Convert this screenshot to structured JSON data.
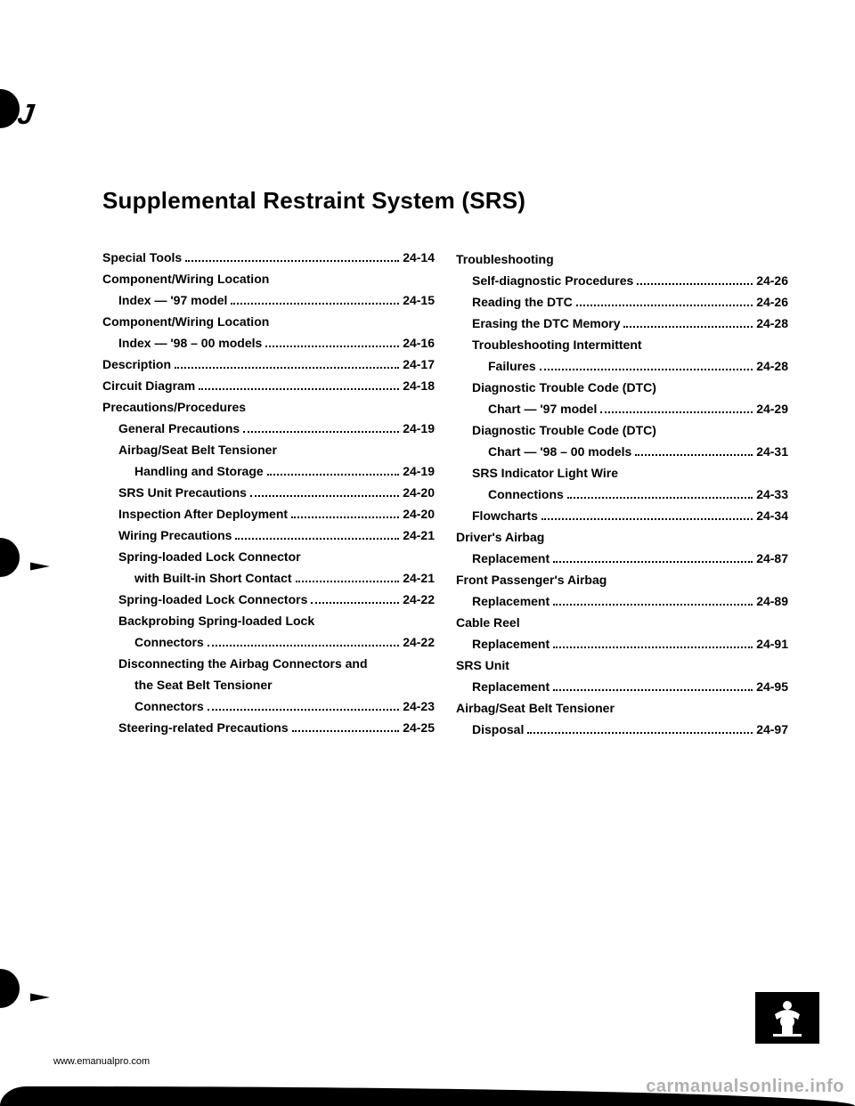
{
  "title": "Supplemental Restraint System (SRS)",
  "footer_url": "www.emanualpro.com",
  "watermark": "carmanualsonline.info",
  "left_col": [
    {
      "type": "line",
      "indent": 0,
      "label": "Special Tools",
      "page": "24-14"
    },
    {
      "type": "heading",
      "indent": 0,
      "label": "Component/Wiring Location"
    },
    {
      "type": "line",
      "indent": 1,
      "label": "Index — '97 model",
      "page": "24-15"
    },
    {
      "type": "heading",
      "indent": 0,
      "label": "Component/Wiring Location"
    },
    {
      "type": "line",
      "indent": 1,
      "label": "Index — '98 – 00 models",
      "page": "24-16"
    },
    {
      "type": "line",
      "indent": 0,
      "label": "Description",
      "page": "24-17"
    },
    {
      "type": "line",
      "indent": 0,
      "label": "Circuit Diagram",
      "page": "24-18"
    },
    {
      "type": "heading",
      "indent": 0,
      "label": "Precautions/Procedures"
    },
    {
      "type": "line",
      "indent": 1,
      "label": "General Precautions",
      "page": "24-19"
    },
    {
      "type": "heading",
      "indent": 1,
      "label": "Airbag/Seat Belt Tensioner"
    },
    {
      "type": "line",
      "indent": 2,
      "label": "Handling and Storage",
      "page": "24-19"
    },
    {
      "type": "line",
      "indent": 1,
      "label": "SRS Unit Precautions",
      "page": "24-20"
    },
    {
      "type": "line",
      "indent": 1,
      "label": "Inspection After Deployment",
      "page": "24-20"
    },
    {
      "type": "line",
      "indent": 1,
      "label": "Wiring Precautions",
      "page": "24-21"
    },
    {
      "type": "heading",
      "indent": 1,
      "label": "Spring-loaded Lock Connector"
    },
    {
      "type": "line",
      "indent": 2,
      "label": "with Built-in Short Contact",
      "page": "24-21"
    },
    {
      "type": "line",
      "indent": 1,
      "label": "Spring-loaded Lock Connectors",
      "page": "24-22"
    },
    {
      "type": "heading",
      "indent": 1,
      "label": "Backprobing Spring-loaded Lock"
    },
    {
      "type": "line",
      "indent": 2,
      "label": "Connectors",
      "page": "24-22"
    },
    {
      "type": "heading",
      "indent": 1,
      "label": "Disconnecting the Airbag Connectors and"
    },
    {
      "type": "heading",
      "indent": 2,
      "label": "the Seat Belt Tensioner"
    },
    {
      "type": "line",
      "indent": 2,
      "label": "Connectors",
      "page": "24-23"
    },
    {
      "type": "line",
      "indent": 1,
      "label": "Steering-related Precautions",
      "page": "24-25"
    }
  ],
  "right_col": [
    {
      "type": "heading",
      "indent": 0,
      "label": "Troubleshooting"
    },
    {
      "type": "line",
      "indent": 1,
      "label": "Self-diagnostic Procedures",
      "page": "24-26"
    },
    {
      "type": "line",
      "indent": 1,
      "label": "Reading the DTC",
      "page": "24-26"
    },
    {
      "type": "line",
      "indent": 1,
      "label": "Erasing the DTC Memory",
      "page": "24-28"
    },
    {
      "type": "heading",
      "indent": 1,
      "label": "Troubleshooting Intermittent"
    },
    {
      "type": "line",
      "indent": 2,
      "label": "Failures",
      "page": "24-28"
    },
    {
      "type": "heading",
      "indent": 1,
      "label": "Diagnostic Trouble Code (DTC)"
    },
    {
      "type": "line",
      "indent": 2,
      "label": "Chart — '97 model",
      "page": "24-29"
    },
    {
      "type": "heading",
      "indent": 1,
      "label": "Diagnostic Trouble Code (DTC)"
    },
    {
      "type": "line",
      "indent": 2,
      "label": "Chart — '98 – 00 models",
      "page": "24-31"
    },
    {
      "type": "heading",
      "indent": 1,
      "label": "SRS Indicator Light Wire"
    },
    {
      "type": "line",
      "indent": 2,
      "label": "Connections",
      "page": "24-33"
    },
    {
      "type": "line",
      "indent": 1,
      "label": "Flowcharts",
      "page": "24-34"
    },
    {
      "type": "heading",
      "indent": 0,
      "label": "Driver's Airbag"
    },
    {
      "type": "line",
      "indent": 1,
      "label": "Replacement",
      "page": "24-87"
    },
    {
      "type": "heading",
      "indent": 0,
      "label": "Front Passenger's Airbag"
    },
    {
      "type": "line",
      "indent": 1,
      "label": "Replacement",
      "page": "24-89"
    },
    {
      "type": "heading",
      "indent": 0,
      "label": "Cable Reel"
    },
    {
      "type": "line",
      "indent": 1,
      "label": "Replacement",
      "page": "24-91"
    },
    {
      "type": "heading",
      "indent": 0,
      "label": "SRS Unit"
    },
    {
      "type": "line",
      "indent": 1,
      "label": "Replacement",
      "page": "24-95"
    },
    {
      "type": "heading",
      "indent": 0,
      "label": "Airbag/Seat Belt Tensioner"
    },
    {
      "type": "line",
      "indent": 1,
      "label": "Disposal",
      "page": "24-97"
    }
  ]
}
